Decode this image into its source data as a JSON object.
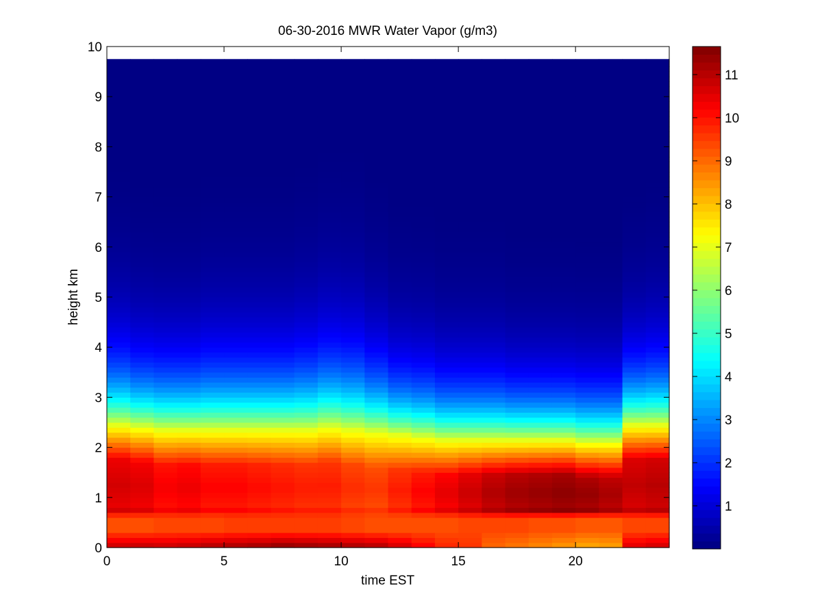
{
  "chart_data": {
    "type": "heatmap",
    "title": "06-30-2016 MWR Water Vapor (g/m3)",
    "xlabel": "time EST",
    "ylabel": "height km",
    "xlim": [
      0,
      24
    ],
    "ylim": [
      0,
      10
    ],
    "x_ticks": [
      "0",
      "5",
      "10",
      "15",
      "20"
    ],
    "y_ticks": [
      "0",
      "1",
      "2",
      "3",
      "4",
      "5",
      "6",
      "7",
      "8",
      "9",
      "10"
    ],
    "colorbar": {
      "range": [
        0,
        11.65
      ],
      "ticks": [
        "1",
        "2",
        "3",
        "4",
        "5",
        "6",
        "7",
        "8",
        "9",
        "10",
        "11"
      ],
      "colormap": "jet"
    },
    "grid": false,
    "time_bins_start": 0.0,
    "time_bin_width": 1.0,
    "n_time_bins": 24,
    "height_top": 9.75,
    "profiles_note_units": "g/m3",
    "surface_value": [
      10.9,
      11.0,
      10.9,
      11.0,
      11.2,
      11.3,
      11.4,
      11.6,
      11.5,
      11.4,
      11.3,
      11.2,
      10.8,
      10.3,
      9.8,
      9.6,
      9.0,
      8.8,
      8.6,
      8.4,
      8.2,
      8.3,
      10.6,
      10.8
    ],
    "low_dip_value": [
      9.3,
      9.3,
      9.4,
      9.4,
      9.4,
      9.5,
      9.5,
      9.5,
      9.5,
      9.5,
      9.4,
      9.3,
      9.3,
      9.3,
      9.3,
      9.4,
      9.4,
      9.4,
      9.3,
      9.3,
      9.2,
      9.2,
      9.4,
      9.4
    ],
    "mid_max_value": [
      10.7,
      10.6,
      10.3,
      10.4,
      10.2,
      10.2,
      10.1,
      10.0,
      9.9,
      9.9,
      9.7,
      9.6,
      9.9,
      10.2,
      10.5,
      10.8,
      11.1,
      11.3,
      11.4,
      11.5,
      11.4,
      11.2,
      10.9,
      11.0
    ],
    "moist_top_height": [
      2.45,
      2.4,
      2.35,
      2.35,
      2.35,
      2.35,
      2.35,
      2.35,
      2.35,
      2.4,
      2.35,
      2.3,
      2.25,
      2.2,
      2.15,
      2.15,
      2.15,
      2.15,
      2.15,
      2.15,
      2.1,
      2.1,
      2.45,
      2.45
    ],
    "upper_decay_height": [
      1.05,
      1.0,
      1.0,
      1.0,
      1.05,
      1.05,
      1.05,
      1.05,
      1.1,
      1.15,
      1.15,
      1.05,
      0.95,
      0.95,
      0.9,
      0.9,
      0.9,
      0.85,
      0.85,
      0.85,
      0.85,
      0.85,
      0.95,
      1.0
    ]
  }
}
